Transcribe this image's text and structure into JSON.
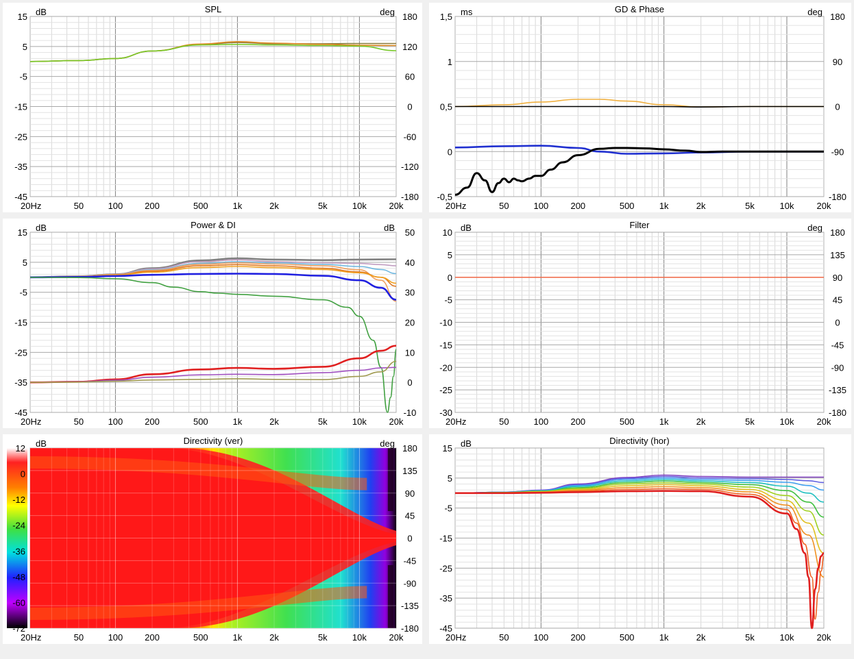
{
  "chart_data": [
    {
      "id": "spl",
      "type": "line",
      "title": "SPL",
      "y_unit": "dB",
      "y2_unit": "deg",
      "x_ticks": [
        "20Hz",
        "50",
        "100",
        "200",
        "500",
        "1k",
        "2k",
        "5k",
        "10k",
        "20k"
      ],
      "y_ticks": [
        "15",
        "5",
        "-5",
        "-15",
        "-25",
        "-35",
        "-45"
      ],
      "y2_ticks": [
        "180",
        "120",
        "60",
        "0",
        "-60",
        "-120",
        "-180"
      ],
      "xlim": [
        20,
        20000
      ],
      "ylim": [
        -45,
        15
      ],
      "x_scale": "log",
      "grid": true,
      "series": [
        {
          "color": "#8a7a3a",
          "x": [
            20,
            50,
            100,
            200,
            500,
            1000,
            2000,
            5000,
            10000,
            20000
          ],
          "y": [
            0,
            0.3,
            1,
            3.5,
            5.7,
            6.3,
            5.9,
            5.9,
            6,
            6
          ]
        },
        {
          "color": "#e08a20",
          "x": [
            20,
            50,
            100,
            200,
            500,
            1000,
            2000,
            5000,
            10000,
            20000
          ],
          "y": [
            0,
            0.3,
            1,
            3.5,
            5.8,
            6.6,
            6.1,
            5.7,
            5.4,
            5.3
          ]
        },
        {
          "color": "#78c82a",
          "x": [
            20,
            50,
            100,
            200,
            500,
            1000,
            2000,
            5000,
            10000,
            20000
          ],
          "y": [
            0,
            0.3,
            1,
            3.5,
            5.5,
            5.7,
            5.5,
            5.3,
            5.1,
            3.6
          ]
        }
      ]
    },
    {
      "id": "gd",
      "type": "line",
      "title": "GD & Phase",
      "y_unit": "ms",
      "y2_unit": "deg",
      "x_ticks": [
        "20Hz",
        "50",
        "100",
        "200",
        "500",
        "1k",
        "2k",
        "5k",
        "10k",
        "20k"
      ],
      "y_ticks": [
        "1,5",
        "1",
        "0,5",
        "0",
        "-0,5"
      ],
      "y2_ticks": [
        "180",
        "90",
        "0",
        "-90",
        "-180"
      ],
      "xlim": [
        20,
        20000
      ],
      "ylim": [
        -0.5,
        1.5
      ],
      "x_scale": "log",
      "grid": true,
      "series": [
        {
          "color": "#f0b040",
          "x": [
            20,
            50,
            100,
            200,
            300,
            500,
            1000,
            2000,
            5000,
            10000,
            20000
          ],
          "y": [
            0.5,
            0.52,
            0.55,
            0.58,
            0.58,
            0.56,
            0.52,
            0.495,
            0.5,
            0.5,
            0.5
          ]
        },
        {
          "color": "#000000",
          "x": [
            20,
            50,
            100,
            200,
            300,
            500,
            1000,
            2000,
            5000,
            10000,
            20000
          ],
          "y": [
            0.5,
            0.5,
            0.5,
            0.5,
            0.5,
            0.5,
            0.5,
            0.495,
            0.5,
            0.5,
            0.5
          ]
        },
        {
          "color": "#2030d0",
          "x": [
            20,
            50,
            100,
            200,
            300,
            500,
            1000,
            2000,
            5000,
            10000,
            20000
          ],
          "y": [
            0.045,
            0.06,
            0.065,
            0.04,
            0,
            -0.025,
            -0.02,
            -0.01,
            0,
            0,
            0
          ]
        },
        {
          "color": "#000000",
          "x": [
            20,
            25,
            30,
            35,
            40,
            45,
            50,
            55,
            60,
            65,
            70,
            80,
            90,
            100,
            120,
            150,
            200,
            300,
            400,
            500,
            700,
            1000,
            1500,
            2000,
            3000,
            5000,
            10000,
            20000
          ],
          "y": [
            -0.48,
            -0.4,
            -0.24,
            -0.32,
            -0.45,
            -0.35,
            -0.3,
            -0.34,
            -0.3,
            -0.32,
            -0.33,
            -0.3,
            -0.27,
            -0.27,
            -0.2,
            -0.12,
            -0.04,
            0.03,
            0.04,
            0.04,
            0.035,
            0.025,
            0.01,
            -0.005,
            0,
            0,
            0,
            0
          ]
        }
      ]
    },
    {
      "id": "power_di",
      "type": "line",
      "title": "Power & DI",
      "y_unit": "dB",
      "y2_unit": "dB",
      "x_ticks": [
        "20Hz",
        "50",
        "100",
        "200",
        "500",
        "1k",
        "2k",
        "5k",
        "10k",
        "20k"
      ],
      "y_ticks": [
        "15",
        "5",
        "-5",
        "-15",
        "-25",
        "-35",
        "-45"
      ],
      "y2_ticks": [
        "50",
        "40",
        "30",
        "20",
        "10",
        "0",
        "-10"
      ],
      "xlim": [
        20,
        20000
      ],
      "ylim": [
        -45,
        15
      ],
      "x_scale": "log",
      "grid": true,
      "series": [
        {
          "color": "#808080",
          "x": [
            20,
            50,
            100,
            200,
            500,
            1000,
            2000,
            5000,
            10000,
            20000
          ],
          "y": [
            0,
            0.3,
            1,
            3,
            5.6,
            6.3,
            5.9,
            5.7,
            5.9,
            6
          ]
        },
        {
          "color": "#c09cc0",
          "x": [
            20,
            50,
            100,
            200,
            500,
            1000,
            2000,
            5000,
            10000,
            15000,
            20000
          ],
          "y": [
            0,
            0.3,
            1,
            2.8,
            5.2,
            5.8,
            5.2,
            4.8,
            4.6,
            4.2,
            3.8
          ]
        },
        {
          "color": "#70b8e0",
          "x": [
            20,
            50,
            100,
            200,
            500,
            1000,
            2000,
            5000,
            10000,
            15000,
            20000
          ],
          "y": [
            0,
            0.3,
            0.9,
            2.5,
            4.6,
            5.2,
            4.8,
            4.3,
            3.6,
            2.6,
            1.2
          ]
        },
        {
          "color": "#f0a060",
          "x": [
            20,
            50,
            100,
            200,
            500,
            1000,
            2000,
            5000,
            10000,
            15000,
            20000
          ],
          "y": [
            0,
            0.3,
            0.9,
            2.3,
            4.3,
            4.8,
            4.4,
            3.8,
            2.5,
            -1,
            -8
          ]
        },
        {
          "color": "#e07820",
          "x": [
            20,
            50,
            100,
            200,
            500,
            1000,
            2000,
            5000,
            10000,
            15000,
            20000
          ],
          "y": [
            0,
            0.2,
            0.8,
            2,
            3.8,
            4.2,
            3.8,
            3,
            1.8,
            0,
            -3
          ]
        },
        {
          "color": "#f0a020",
          "x": [
            20,
            50,
            100,
            200,
            500,
            1000,
            2000,
            5000,
            10000,
            15000,
            20000
          ],
          "y": [
            0,
            0.2,
            0.7,
            1.7,
            3.2,
            3.6,
            3.2,
            2.6,
            1.5,
            0,
            -2
          ]
        },
        {
          "color": "#2020e0",
          "x": [
            20,
            50,
            100,
            200,
            500,
            1000,
            2000,
            5000,
            10000,
            15000,
            20000
          ],
          "y": [
            0,
            0.1,
            0.4,
            0.8,
            1.1,
            1.2,
            1.1,
            0.5,
            -1,
            -3.5,
            -7.5
          ]
        },
        {
          "color": "#40a040",
          "x": [
            20,
            50,
            100,
            200,
            300,
            500,
            700,
            1000,
            2000,
            5000,
            8000,
            10000,
            13000,
            15000,
            17000,
            18000,
            19000,
            20000
          ],
          "y": [
            0,
            -0.1,
            -0.5,
            -1.8,
            -3.3,
            -4.8,
            -5.3,
            -5.7,
            -6.3,
            -7.5,
            -10,
            -13,
            -21,
            -30,
            -45,
            -40,
            -33,
            -24
          ]
        },
        {
          "color": "#e02020",
          "x": [
            20,
            50,
            100,
            200,
            500,
            1000,
            2000,
            5000,
            10000,
            15000,
            20000
          ],
          "y": [
            -35,
            -34.8,
            -34,
            -32.3,
            -30.7,
            -30.2,
            -30.5,
            -29.8,
            -27,
            -24.5,
            -22.8
          ]
        },
        {
          "color": "#a050c0",
          "x": [
            20,
            50,
            100,
            200,
            500,
            1000,
            2000,
            5000,
            10000,
            15000,
            20000
          ],
          "y": [
            -35,
            -34.8,
            -34.3,
            -33.3,
            -32.5,
            -32.3,
            -32.4,
            -31.8,
            -31,
            -30.2,
            -30
          ]
        },
        {
          "color": "#a09a50",
          "x": [
            20,
            50,
            100,
            200,
            500,
            1000,
            2000,
            5000,
            10000,
            15000,
            20000
          ],
          "y": [
            -35,
            -34.9,
            -34.6,
            -34.2,
            -34,
            -33.8,
            -34,
            -34.1,
            -33,
            -31.5,
            -28
          ]
        }
      ]
    },
    {
      "id": "filter",
      "type": "line",
      "title": "Filter",
      "y_unit": "dB",
      "y2_unit": "deg",
      "x_ticks": [
        "20Hz",
        "50",
        "100",
        "200",
        "500",
        "1k",
        "2k",
        "5k",
        "10k",
        "20k"
      ],
      "y_ticks": [
        "10",
        "5",
        "0",
        "-5",
        "-10",
        "-15",
        "-20",
        "-25",
        "-30"
      ],
      "y2_ticks": [
        "180",
        "135",
        "90",
        "45",
        "0",
        "-45",
        "-90",
        "-135",
        "-180"
      ],
      "xlim": [
        20,
        20000
      ],
      "ylim": [
        -30,
        10
      ],
      "x_scale": "log",
      "grid": true,
      "series": [
        {
          "color": "#f07050",
          "x": [
            20,
            20000
          ],
          "y": [
            0,
            0
          ]
        }
      ]
    },
    {
      "id": "dir_ver",
      "type": "heatmap",
      "title": "Directivity (ver)",
      "y_unit": "dB",
      "y2_unit": "deg",
      "x_ticks": [
        "20Hz",
        "50",
        "100",
        "200",
        "500",
        "1k",
        "2k",
        "5k",
        "10k",
        "20k"
      ],
      "y2_ticks": [
        "180",
        "135",
        "90",
        "45",
        "0",
        "-45",
        "-90",
        "-135",
        "-180"
      ],
      "colorbar_ticks": [
        "12",
        "0",
        "-12",
        "-24",
        "-36",
        "-48",
        "-60",
        "-72"
      ],
      "xlim": [
        20,
        20000
      ],
      "ylim": [
        -180,
        180
      ],
      "x_scale": "log",
      "colors": [
        "#ffffff",
        "#ff2020",
        "#ff8000",
        "#ffff00",
        "#40e040",
        "#00e0e0",
        "#2020ff",
        "#c000ff",
        "#000000"
      ]
    },
    {
      "id": "dir_hor",
      "type": "line",
      "title": "Directivity (hor)",
      "y_unit": "dB",
      "x_ticks": [
        "20Hz",
        "50",
        "100",
        "200",
        "500",
        "1k",
        "2k",
        "5k",
        "10k",
        "20k"
      ],
      "y_ticks": [
        "15",
        "5",
        "-5",
        "-15",
        "-25",
        "-35",
        "-45"
      ],
      "xlim": [
        20,
        20000
      ],
      "ylim": [
        -45,
        15
      ],
      "x_scale": "log",
      "grid": true,
      "series": [
        {
          "color": "#8040c0",
          "x": [
            20,
            50,
            100,
            200,
            500,
            1000,
            2000,
            5000,
            10000,
            15000,
            20000
          ],
          "y": [
            0,
            0.3,
            1,
            3,
            5.2,
            6,
            5.5,
            5.3,
            5.3,
            5.3,
            5.3
          ]
        },
        {
          "color": "#6060e0",
          "x": [
            20,
            50,
            100,
            200,
            500,
            1000,
            2000,
            5000,
            10000,
            15000,
            20000
          ],
          "y": [
            0,
            0.3,
            0.9,
            2.8,
            4.9,
            5.5,
            5,
            4.8,
            4.5,
            4.1,
            3.5
          ]
        },
        {
          "color": "#40a0f0",
          "x": [
            20,
            50,
            100,
            200,
            500,
            1000,
            2000,
            5000,
            10000,
            15000,
            20000
          ],
          "y": [
            0,
            0.3,
            0.8,
            2.5,
            4.5,
            5,
            4.5,
            4.2,
            3.6,
            2.5,
            1
          ]
        },
        {
          "color": "#20c0c0",
          "x": [
            20,
            50,
            100,
            200,
            500,
            1000,
            2000,
            5000,
            10000,
            15000,
            20000
          ],
          "y": [
            0,
            0.2,
            0.7,
            2.2,
            4,
            4.5,
            4,
            3.5,
            2.3,
            0,
            -3
          ]
        },
        {
          "color": "#40c040",
          "x": [
            20,
            50,
            100,
            200,
            500,
            1000,
            2000,
            5000,
            10000,
            15000,
            20000
          ],
          "y": [
            0,
            0.2,
            0.6,
            1.8,
            3.5,
            4,
            3.5,
            2.8,
            0.8,
            -3,
            -8
          ]
        },
        {
          "color": "#a0d020",
          "x": [
            20,
            50,
            100,
            200,
            500,
            1000,
            2000,
            5000,
            10000,
            15000,
            20000
          ],
          "y": [
            0,
            0.2,
            0.5,
            1.5,
            3,
            3.4,
            3,
            2,
            -0.8,
            -6,
            -14
          ]
        },
        {
          "color": "#e0c020",
          "x": [
            20,
            50,
            100,
            200,
            500,
            1000,
            2000,
            5000,
            10000,
            15000,
            20000
          ],
          "y": [
            0,
            0.1,
            0.4,
            1.2,
            2.4,
            2.8,
            2.4,
            1.2,
            -2.5,
            -10,
            -20
          ]
        },
        {
          "color": "#f09020",
          "x": [
            20,
            50,
            100,
            200,
            500,
            1000,
            2000,
            5000,
            10000,
            15000,
            20000
          ],
          "y": [
            0,
            0.1,
            0.3,
            0.9,
            1.8,
            2.1,
            1.8,
            0.4,
            -4,
            -14,
            -28
          ]
        },
        {
          "color": "#f06020",
          "x": [
            20,
            50,
            100,
            200,
            500,
            1000,
            2000,
            5000,
            10000,
            12000,
            14000,
            16000,
            17000,
            18000,
            19000,
            20000
          ],
          "y": [
            0,
            0.1,
            0.2,
            0.6,
            1.2,
            1.4,
            1.2,
            -0.4,
            -5.5,
            -10,
            -17,
            -28,
            -42,
            -33,
            -26,
            -21
          ]
        },
        {
          "color": "#e02020",
          "x": [
            20,
            50,
            100,
            200,
            500,
            1000,
            2000,
            5000,
            10000,
            12000,
            14000,
            15000,
            16000,
            17000,
            18000,
            19000,
            20000
          ],
          "y": [
            0,
            0,
            0.1,
            0.3,
            0.6,
            0.7,
            0.6,
            -1.2,
            -6.8,
            -12,
            -20,
            -28,
            -45,
            -32,
            -25,
            -21,
            -20
          ]
        }
      ]
    }
  ]
}
